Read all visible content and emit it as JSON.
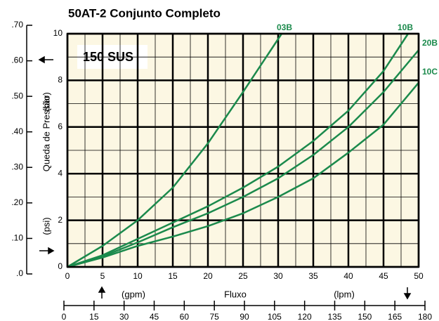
{
  "chart_data": {
    "type": "line",
    "title": "50AT-2 Conjunto Completo",
    "annotation": "150 SUS",
    "y_label": "Queda de Pressão",
    "y_unit": "(psi)",
    "y2_unit": "(bar)",
    "x_label": "Fluxo",
    "x_unit": "(gpm)",
    "x2_unit": "(lpm)",
    "xlim": [
      0,
      50
    ],
    "xticks": [
      0,
      5,
      10,
      15,
      20,
      25,
      30,
      35,
      40,
      45,
      50
    ],
    "x_minor_ticks": [
      2.5,
      7.5,
      12.5,
      17.5,
      22.5,
      27.5,
      32.5,
      37.5,
      42.5,
      47.5
    ],
    "ylim": [
      0,
      10
    ],
    "yticks": [
      0,
      2,
      4,
      6,
      8,
      10
    ],
    "y_minor_ticks": [
      1,
      3,
      5,
      7,
      9
    ],
    "y2lim": [
      0,
      0.7
    ],
    "y2ticks": [
      {
        "value": 0,
        "label": ".0"
      },
      {
        "value": 0.1,
        "label": ".10"
      },
      {
        "value": 0.2,
        "label": ".20"
      },
      {
        "value": 0.3,
        "label": ".30"
      },
      {
        "value": 0.4,
        "label": ".40"
      },
      {
        "value": 0.5,
        "label": ".50"
      },
      {
        "value": 0.6,
        "label": ".60"
      },
      {
        "value": 0.7,
        "label": ".70"
      }
    ],
    "x2lim": [
      0,
      180
    ],
    "x2ticks": [
      0,
      15,
      30,
      45,
      60,
      75,
      90,
      105,
      120,
      135,
      150,
      165,
      180
    ],
    "grid": true,
    "series": [
      {
        "name": "03B",
        "color": "#1b8a4c",
        "x": [
          0,
          5,
          10,
          15,
          20,
          25,
          30.5
        ],
        "values": [
          0,
          0.9,
          2.0,
          3.4,
          5.3,
          7.5,
          10
        ]
      },
      {
        "name": "10B",
        "color": "#1b8a4c",
        "x": [
          0,
          5,
          10,
          15,
          20,
          25,
          30,
          35,
          40,
          45,
          48.5
        ],
        "values": [
          0,
          0.5,
          1.2,
          1.9,
          2.6,
          3.4,
          4.3,
          5.4,
          6.7,
          8.4,
          10
        ]
      },
      {
        "name": "20B",
        "color": "#1b8a4c",
        "x": [
          0,
          5,
          10,
          15,
          20,
          25,
          30,
          35,
          40,
          45,
          50
        ],
        "values": [
          0,
          0.45,
          1.05,
          1.7,
          2.3,
          3.0,
          3.8,
          4.8,
          6.0,
          7.5,
          9.3
        ]
      },
      {
        "name": "10C",
        "color": "#1b8a4c",
        "x": [
          0,
          5,
          10,
          15,
          20,
          25,
          30,
          35,
          40,
          45,
          50
        ],
        "values": [
          0,
          0.4,
          0.9,
          1.3,
          1.75,
          2.3,
          3.0,
          3.8,
          4.9,
          6.1,
          7.9
        ]
      }
    ]
  }
}
